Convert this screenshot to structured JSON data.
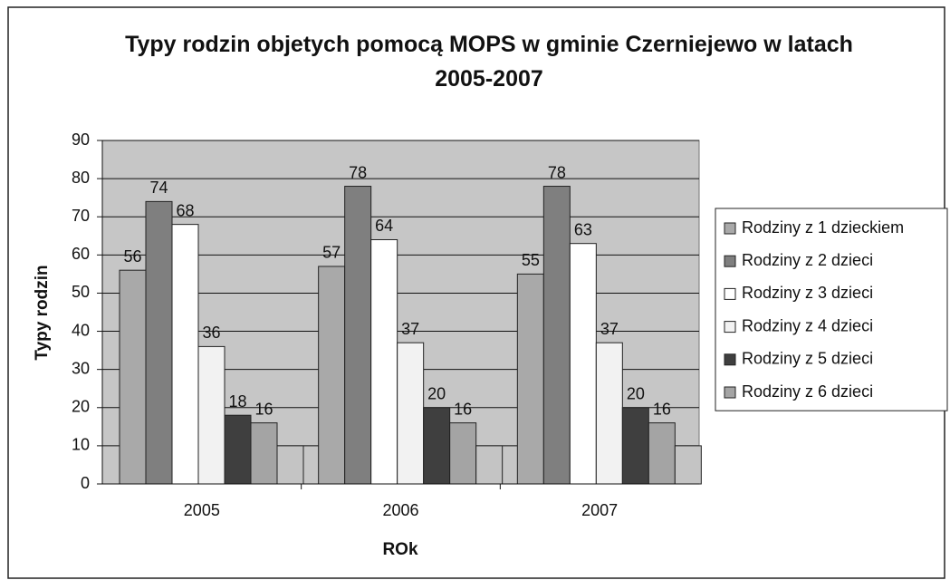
{
  "chart_data": {
    "type": "bar",
    "title": "Typy rodzin objetych pomocą MOPS w gminie Czerniejewo w latach 2005-2007",
    "x_label": "ROk",
    "y_label": "Typy rodzin",
    "categories": [
      "2005",
      "2006",
      "2007"
    ],
    "series": [
      {
        "name": "Rodziny z 1 dzieckiem",
        "color": "#a9a9a9",
        "values": [
          56,
          57,
          55
        ]
      },
      {
        "name": "Rodziny z 2 dzieci",
        "color": "#7f7f7f",
        "values": [
          74,
          78,
          78
        ]
      },
      {
        "name": "Rodziny z 3 dzieci",
        "color": "#ffffff",
        "values": [
          68,
          64,
          63
        ]
      },
      {
        "name": "Rodziny z 4 dzieci",
        "color": "#f2f2f2",
        "values": [
          36,
          37,
          37
        ]
      },
      {
        "name": "Rodziny z 5 dzieci",
        "color": "#3f3f3f",
        "values": [
          18,
          20,
          20
        ]
      },
      {
        "name": "Rodziny z 6 dzieci",
        "color": "#a4a4a4",
        "values": [
          16,
          16,
          16
        ]
      },
      {
        "color": "#c4c4c4",
        "values": [
          10,
          10,
          10
        ]
      }
    ],
    "ylim": [
      0,
      90
    ],
    "yticks": [
      0,
      10,
      20,
      30,
      40,
      50,
      60,
      70,
      80,
      90
    ],
    "grid": true,
    "plot_background": "#c6c6c6",
    "legend": "right"
  }
}
